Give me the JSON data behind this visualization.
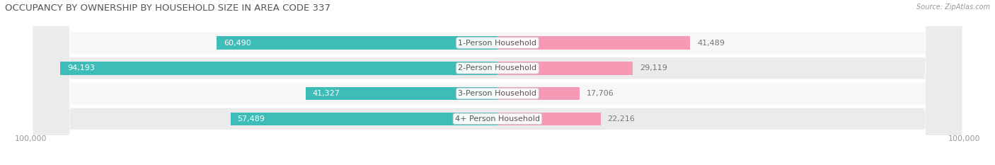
{
  "title": "OCCUPANCY BY OWNERSHIP BY HOUSEHOLD SIZE IN AREA CODE 337",
  "source": "Source: ZipAtlas.com",
  "categories": [
    "1-Person Household",
    "2-Person Household",
    "3-Person Household",
    "4+ Person Household"
  ],
  "owner_values": [
    60490,
    94193,
    41327,
    57489
  ],
  "renter_values": [
    41489,
    29119,
    17706,
    22216
  ],
  "owner_color": "#3DBCB8",
  "renter_color": "#F599B4",
  "row_bg_even": "#F7F7F7",
  "row_bg_odd": "#EBEBEB",
  "max_value": 100000,
  "axis_label": "100,000",
  "title_fontsize": 9.5,
  "label_fontsize": 8,
  "source_fontsize": 7,
  "tick_fontsize": 8,
  "bar_height": 0.52,
  "figsize": [
    14.06,
    2.33
  ],
  "dpi": 100
}
